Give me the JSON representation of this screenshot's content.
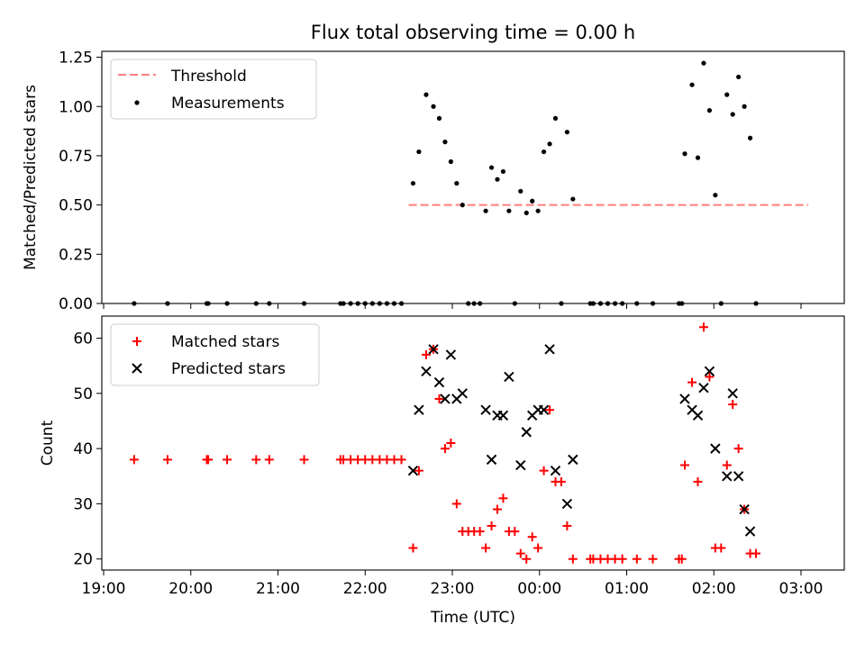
{
  "chart_data": [
    {
      "type": "scatter",
      "title": "Flux total observing time = 0.00 h",
      "ylabel": "Matched/Predicted stars",
      "xlabel": "",
      "ylim": [
        0,
        1.28
      ],
      "y_ticks": [
        "0.00",
        "0.25",
        "0.50",
        "0.75",
        "1.00",
        "1.25"
      ],
      "y_tick_values": [
        0,
        0.25,
        0.5,
        0.75,
        1.0,
        1.25
      ],
      "legend": {
        "position": "top-left",
        "entries": [
          "Threshold",
          "Measurements"
        ]
      },
      "threshold": {
        "name": "Threshold",
        "value": 0.5,
        "x_range": [
          "22:30",
          "03:05"
        ],
        "color": "#ff7f7f"
      },
      "series": [
        {
          "name": "Measurements",
          "color": "#000000",
          "points": [
            [
              "19:21",
              0
            ],
            [
              "19:44",
              0
            ],
            [
              "20:11",
              0
            ],
            [
              "20:12",
              0
            ],
            [
              "20:25",
              0
            ],
            [
              "20:45",
              0
            ],
            [
              "20:54",
              0
            ],
            [
              "21:18",
              0
            ],
            [
              "21:43",
              0
            ],
            [
              "21:45",
              0
            ],
            [
              "21:50",
              0
            ],
            [
              "21:55",
              0
            ],
            [
              "22:00",
              0
            ],
            [
              "22:05",
              0
            ],
            [
              "22:10",
              0
            ],
            [
              "22:15",
              0
            ],
            [
              "22:20",
              0
            ],
            [
              "22:25",
              0
            ],
            [
              "22:33",
              0.61
            ],
            [
              "22:37",
              0.77
            ],
            [
              "22:42",
              1.06
            ],
            [
              "22:47",
              1.0
            ],
            [
              "22:51",
              0.94
            ],
            [
              "22:55",
              0.82
            ],
            [
              "22:59",
              0.72
            ],
            [
              "23:03",
              0.61
            ],
            [
              "23:07",
              0.5
            ],
            [
              "23:11",
              0
            ],
            [
              "23:15",
              0
            ],
            [
              "23:19",
              0
            ],
            [
              "23:23",
              0.47
            ],
            [
              "23:27",
              0.69
            ],
            [
              "23:31",
              0.63
            ],
            [
              "23:35",
              0.67
            ],
            [
              "23:39",
              0.47
            ],
            [
              "23:43",
              0
            ],
            [
              "23:47",
              0.57
            ],
            [
              "23:51",
              0.46
            ],
            [
              "23:55",
              0.52
            ],
            [
              "23:59",
              0.47
            ],
            [
              "00:03",
              0.77
            ],
            [
              "00:07",
              0.81
            ],
            [
              "00:11",
              0.94
            ],
            [
              "00:15",
              0
            ],
            [
              "00:19",
              0.87
            ],
            [
              "00:23",
              0.53
            ],
            [
              "00:35",
              0
            ],
            [
              "00:37",
              0
            ],
            [
              "00:42",
              0
            ],
            [
              "00:47",
              0
            ],
            [
              "00:52",
              0
            ],
            [
              "00:57",
              0
            ],
            [
              "01:07",
              0
            ],
            [
              "01:18",
              0
            ],
            [
              "01:36",
              0
            ],
            [
              "01:38",
              0
            ],
            [
              "01:40",
              0.76
            ],
            [
              "01:45",
              1.11
            ],
            [
              "01:49",
              0.74
            ],
            [
              "01:53",
              1.22
            ],
            [
              "01:57",
              0.98
            ],
            [
              "02:01",
              0.55
            ],
            [
              "02:05",
              0
            ],
            [
              "02:09",
              1.06
            ],
            [
              "02:13",
              0.96
            ],
            [
              "02:17",
              1.15
            ],
            [
              "02:21",
              1.0
            ],
            [
              "02:25",
              0.84
            ],
            [
              "02:29",
              0
            ]
          ]
        }
      ]
    },
    {
      "type": "scatter",
      "title": "",
      "ylabel": "Count",
      "xlabel": "Time (UTC)",
      "ylim": [
        18,
        64
      ],
      "y_ticks": [
        "20",
        "30",
        "40",
        "50",
        "60"
      ],
      "y_tick_values": [
        20,
        30,
        40,
        50,
        60
      ],
      "x_ticks": [
        "19:00",
        "20:00",
        "21:00",
        "22:00",
        "23:00",
        "00:00",
        "01:00",
        "02:00",
        "03:00"
      ],
      "legend": {
        "position": "top-left",
        "entries": [
          "Matched stars",
          "Predicted stars"
        ]
      },
      "series": [
        {
          "name": "Matched stars",
          "color": "#ff0000",
          "marker": "plus",
          "points": [
            [
              "19:21",
              38
            ],
            [
              "19:44",
              38
            ],
            [
              "20:11",
              38
            ],
            [
              "20:12",
              38
            ],
            [
              "20:25",
              38
            ],
            [
              "20:45",
              38
            ],
            [
              "20:54",
              38
            ],
            [
              "21:18",
              38
            ],
            [
              "21:43",
              38
            ],
            [
              "21:45",
              38
            ],
            [
              "21:50",
              38
            ],
            [
              "21:55",
              38
            ],
            [
              "22:00",
              38
            ],
            [
              "22:05",
              38
            ],
            [
              "22:10",
              38
            ],
            [
              "22:15",
              38
            ],
            [
              "22:20",
              38
            ],
            [
              "22:25",
              38
            ],
            [
              "22:33",
              22
            ],
            [
              "22:37",
              36
            ],
            [
              "22:42",
              57
            ],
            [
              "22:47",
              58
            ],
            [
              "22:51",
              49
            ],
            [
              "22:55",
              40
            ],
            [
              "22:59",
              41
            ],
            [
              "23:03",
              30
            ],
            [
              "23:07",
              25
            ],
            [
              "23:11",
              25
            ],
            [
              "23:15",
              25
            ],
            [
              "23:19",
              25
            ],
            [
              "23:23",
              22
            ],
            [
              "23:27",
              26
            ],
            [
              "23:31",
              29
            ],
            [
              "23:35",
              31
            ],
            [
              "23:39",
              25
            ],
            [
              "23:43",
              25
            ],
            [
              "23:47",
              21
            ],
            [
              "23:51",
              20
            ],
            [
              "23:55",
              24
            ],
            [
              "23:59",
              22
            ],
            [
              "00:03",
              36
            ],
            [
              "00:07",
              47
            ],
            [
              "00:11",
              34
            ],
            [
              "00:15",
              34
            ],
            [
              "00:19",
              26
            ],
            [
              "00:23",
              20
            ],
            [
              "00:35",
              20
            ],
            [
              "00:37",
              20
            ],
            [
              "00:42",
              20
            ],
            [
              "00:47",
              20
            ],
            [
              "00:52",
              20
            ],
            [
              "00:57",
              20
            ],
            [
              "01:07",
              20
            ],
            [
              "01:18",
              20
            ],
            [
              "01:36",
              20
            ],
            [
              "01:38",
              20
            ],
            [
              "01:40",
              37
            ],
            [
              "01:45",
              52
            ],
            [
              "01:49",
              34
            ],
            [
              "01:53",
              62
            ],
            [
              "01:57",
              53
            ],
            [
              "02:01",
              22
            ],
            [
              "02:05",
              22
            ],
            [
              "02:09",
              37
            ],
            [
              "02:13",
              48
            ],
            [
              "02:17",
              40
            ],
            [
              "02:21",
              29
            ],
            [
              "02:25",
              21
            ],
            [
              "02:29",
              21
            ]
          ]
        },
        {
          "name": "Predicted stars",
          "color": "#000000",
          "marker": "x",
          "points": [
            [
              "22:33",
              36
            ],
            [
              "22:37",
              47
            ],
            [
              "22:42",
              54
            ],
            [
              "22:47",
              58
            ],
            [
              "22:51",
              52
            ],
            [
              "22:55",
              49
            ],
            [
              "22:59",
              57
            ],
            [
              "23:03",
              49
            ],
            [
              "23:07",
              50
            ],
            [
              "23:23",
              47
            ],
            [
              "23:27",
              38
            ],
            [
              "23:31",
              46
            ],
            [
              "23:35",
              46
            ],
            [
              "23:39",
              53
            ],
            [
              "23:47",
              37
            ],
            [
              "23:51",
              43
            ],
            [
              "23:55",
              46
            ],
            [
              "23:59",
              47
            ],
            [
              "00:03",
              47
            ],
            [
              "00:07",
              58
            ],
            [
              "00:11",
              36
            ],
            [
              "00:19",
              30
            ],
            [
              "00:23",
              38
            ],
            [
              "01:40",
              49
            ],
            [
              "01:45",
              47
            ],
            [
              "01:49",
              46
            ],
            [
              "01:53",
              51
            ],
            [
              "01:57",
              54
            ],
            [
              "02:01",
              40
            ],
            [
              "02:09",
              35
            ],
            [
              "02:13",
              50
            ],
            [
              "02:17",
              35
            ],
            [
              "02:21",
              29
            ],
            [
              "02:25",
              25
            ]
          ]
        }
      ]
    }
  ]
}
